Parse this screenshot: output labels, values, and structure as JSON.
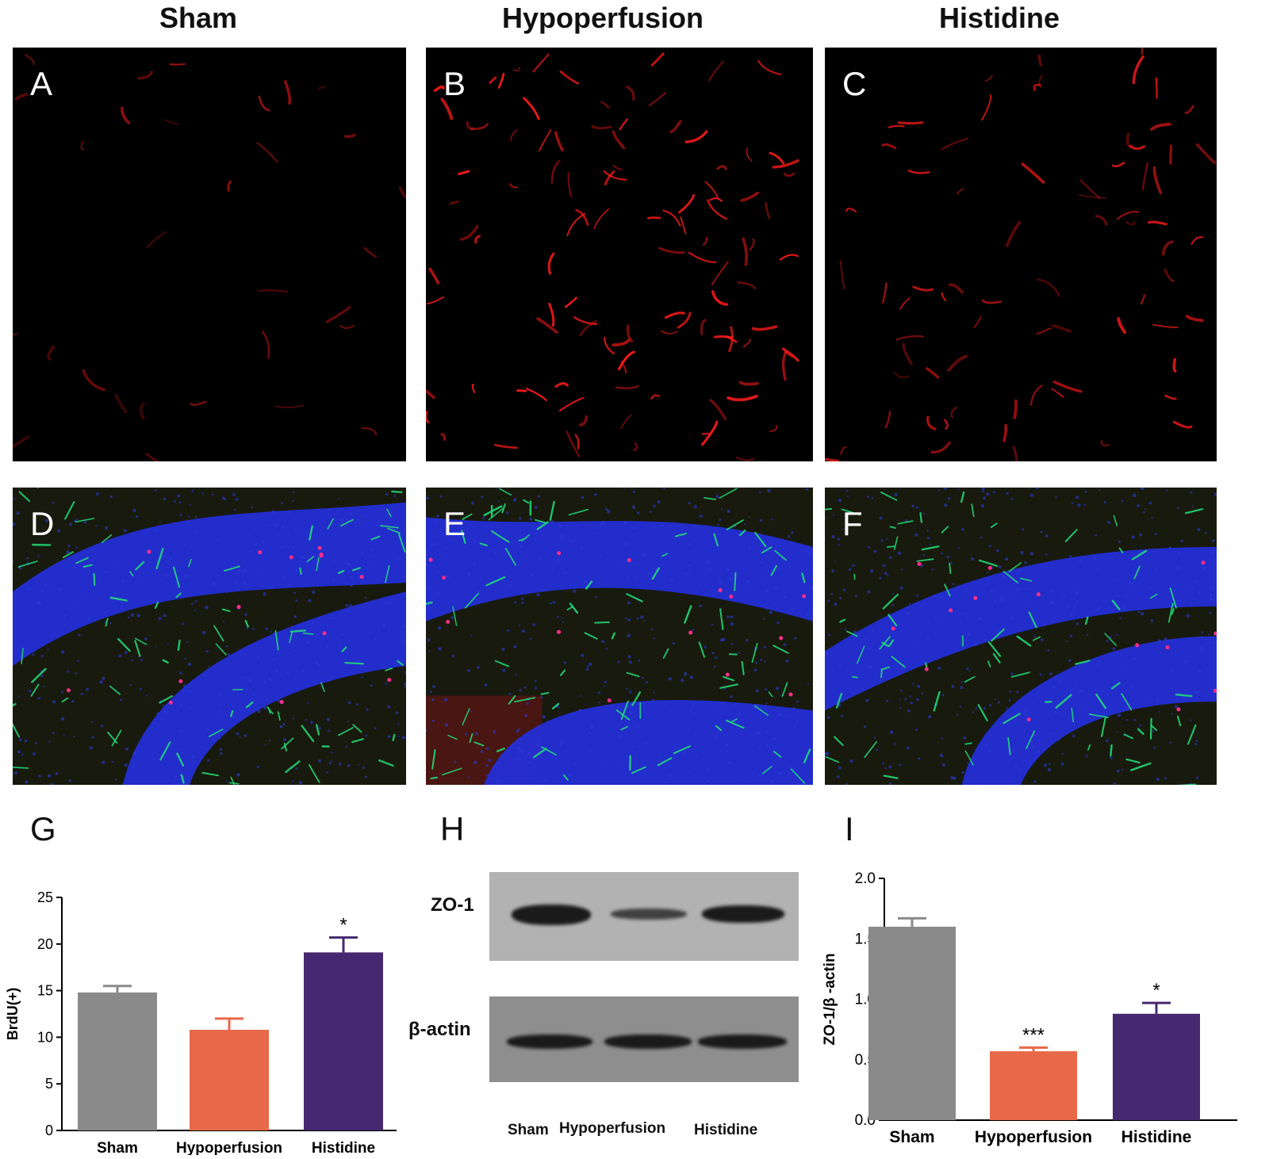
{
  "column_titles": [
    "Sham",
    "Hypoperfusion",
    "Histidine"
  ],
  "panel_labels": [
    "A",
    "B",
    "C",
    "D",
    "E",
    "F",
    "G",
    "H",
    "I"
  ],
  "images": {
    "top_row": "red-fluorescence-micrographs",
    "bottom_row": "tri-color-fluorescence-micrographs"
  },
  "western_blot": {
    "rows": [
      "ZO-1",
      "β-actin"
    ],
    "lanes": [
      "Sham",
      "Hypoperfusion",
      "Histidine"
    ],
    "zo1_band_intensity": [
      1.0,
      0.55,
      0.95
    ],
    "actin_band_intensity": [
      1.0,
      1.0,
      1.0
    ]
  },
  "chart_data": [
    {
      "type": "bar",
      "panel": "G",
      "categories": [
        "Sham",
        "Hypoperfusion",
        "Histidine"
      ],
      "values": [
        14.8,
        10.8,
        19.1
      ],
      "errors": [
        0.7,
        1.2,
        1.6
      ],
      "significance": [
        "",
        "",
        "*"
      ],
      "colors": [
        "#8a8a8a",
        "#e8694a",
        "#45286f"
      ],
      "ylabel": "BrdU(+)",
      "ylim": [
        0,
        25
      ],
      "yticks": [
        "0",
        "5",
        "10",
        "15",
        "20",
        "25"
      ]
    },
    {
      "type": "bar",
      "panel": "I",
      "categories": [
        "Sham",
        "Hypoperfusion",
        "Histidine"
      ],
      "values": [
        1.6,
        0.57,
        0.88
      ],
      "errors": [
        0.07,
        0.03,
        0.09
      ],
      "significance": [
        "",
        "***",
        "*"
      ],
      "colors": [
        "#8a8a8a",
        "#e8694a",
        "#45286f"
      ],
      "ylabel": "ZO-1/β -actin",
      "ylim": [
        0,
        2.0
      ],
      "yticks": [
        "0.0",
        "0.5",
        "1.0",
        "1.5",
        "2.0"
      ]
    }
  ]
}
